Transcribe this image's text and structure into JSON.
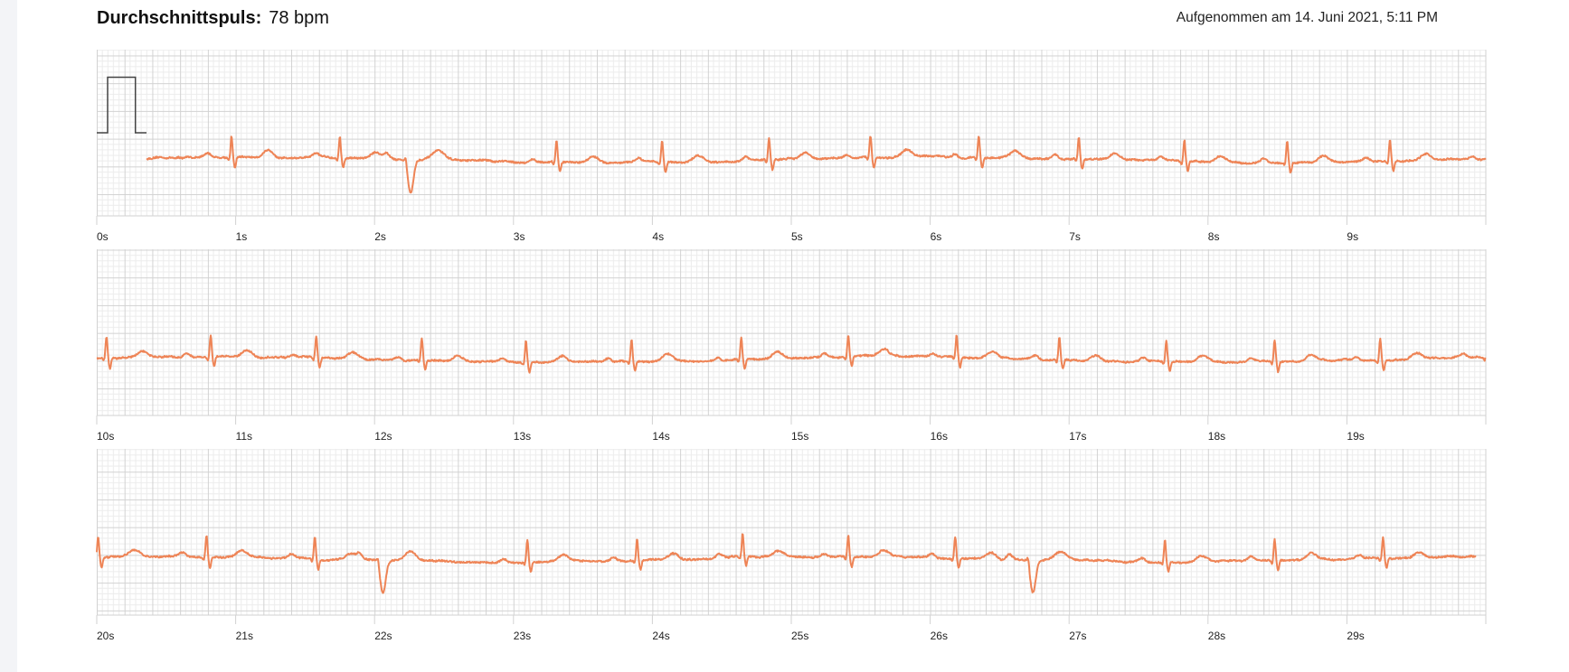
{
  "header": {
    "avg_label": "Durchschnittspuls:",
    "avg_value": "78 bpm",
    "recorded": "Aufgenommen am 14. Juni 2021, 5:11 PM"
  },
  "colors": {
    "trace": "#ee8456",
    "grid_major": "#d2d2d2",
    "grid_minor": "#ececec",
    "calibration": "#444444",
    "sidebar": "#f3f4f7"
  },
  "chart_data": {
    "type": "line",
    "title": "",
    "xlabel": "",
    "ylabel": "",
    "grid": true,
    "calibration_pulse": true,
    "seconds_per_strip": 10,
    "signal_start_s": 0.36,
    "signal_end_s": 29.93,
    "strips": [
      {
        "tick_labels": [
          "0s",
          "1s",
          "2s",
          "3s",
          "4s",
          "5s",
          "6s",
          "7s",
          "8s",
          "9s"
        ]
      },
      {
        "tick_labels": [
          "10s",
          "11s",
          "12s",
          "13s",
          "14s",
          "15s",
          "16s",
          "17s",
          "18s",
          "19s"
        ]
      },
      {
        "tick_labels": [
          "20s",
          "21s",
          "22s",
          "23s",
          "24s",
          "25s",
          "26s",
          "27s",
          "28s",
          "29s"
        ]
      }
    ],
    "beats_s": [
      0.97,
      1.75,
      2.26,
      3.31,
      4.07,
      4.84,
      5.57,
      6.35,
      7.07,
      7.83,
      8.57,
      9.31,
      10.07,
      10.82,
      11.58,
      12.34,
      13.09,
      13.85,
      14.64,
      15.41,
      16.19,
      16.93,
      17.7,
      18.48,
      19.24,
      20.01,
      20.79,
      21.57,
      22.06,
      23.1,
      23.89,
      24.65,
      25.41,
      26.18,
      26.74,
      27.69,
      28.48,
      29.26
    ],
    "inverted_beats_s": [
      2.26,
      22.06,
      26.74
    ]
  }
}
